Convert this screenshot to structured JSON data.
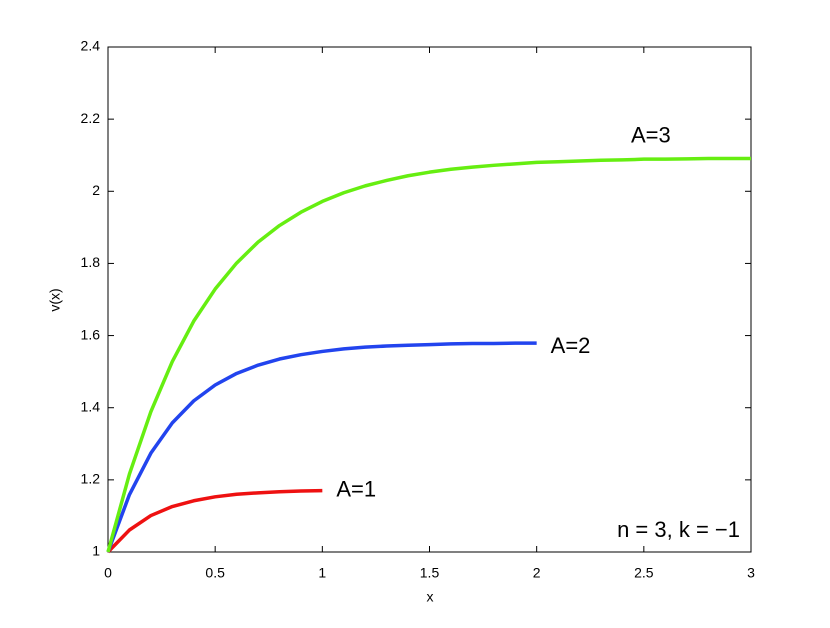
{
  "chart_data": {
    "type": "line",
    "xlabel": "x",
    "ylabel": "v(x)",
    "xlim": [
      0,
      3
    ],
    "ylim": [
      1,
      2.4
    ],
    "xticks": [
      0,
      0.5,
      1,
      1.5,
      2,
      2.5,
      3
    ],
    "yticks": [
      1,
      1.2,
      1.4,
      1.6,
      1.8,
      2,
      2.2,
      2.4
    ],
    "grid": false,
    "series": [
      {
        "name": "A=1",
        "color": "#ee1111",
        "x": [
          0,
          0.1,
          0.2,
          0.3,
          0.4,
          0.5,
          0.6,
          0.7,
          0.8,
          0.9,
          1
        ],
        "values": [
          1.0,
          1.061,
          1.101,
          1.126,
          1.142,
          1.153,
          1.16,
          1.164,
          1.167,
          1.169,
          1.17
        ]
      },
      {
        "name": "A=2",
        "color": "#2244ee",
        "x": [
          0,
          0.1,
          0.2,
          0.3,
          0.4,
          0.5,
          0.6,
          0.7,
          0.8,
          0.9,
          1,
          1.1,
          1.2,
          1.3,
          1.4,
          1.5,
          1.6,
          1.7,
          1.8,
          1.9,
          2
        ],
        "values": [
          1.0,
          1.159,
          1.274,
          1.358,
          1.419,
          1.463,
          1.495,
          1.518,
          1.535,
          1.547,
          1.556,
          1.563,
          1.568,
          1.571,
          1.573,
          1.575,
          1.577,
          1.578,
          1.578,
          1.579,
          1.579
        ]
      },
      {
        "name": "A=3",
        "color": "#66ee11",
        "x": [
          0,
          0.1,
          0.2,
          0.3,
          0.4,
          0.5,
          0.6,
          0.7,
          0.8,
          0.9,
          1,
          1.1,
          1.2,
          1.3,
          1.4,
          1.5,
          1.6,
          1.7,
          1.8,
          1.9,
          2,
          2.1,
          2.2,
          2.3,
          2.4,
          2.5,
          2.6,
          2.7,
          2.8,
          2.9,
          3
        ],
        "values": [
          1.0,
          1.216,
          1.389,
          1.528,
          1.64,
          1.729,
          1.801,
          1.859,
          1.905,
          1.942,
          1.972,
          1.996,
          2.015,
          2.03,
          2.043,
          2.053,
          2.061,
          2.067,
          2.072,
          2.076,
          2.08,
          2.082,
          2.084,
          2.086,
          2.087,
          2.089,
          2.089,
          2.09,
          2.091,
          2.091,
          2.091
        ]
      }
    ],
    "annotation": "n = 3, k = −1"
  }
}
